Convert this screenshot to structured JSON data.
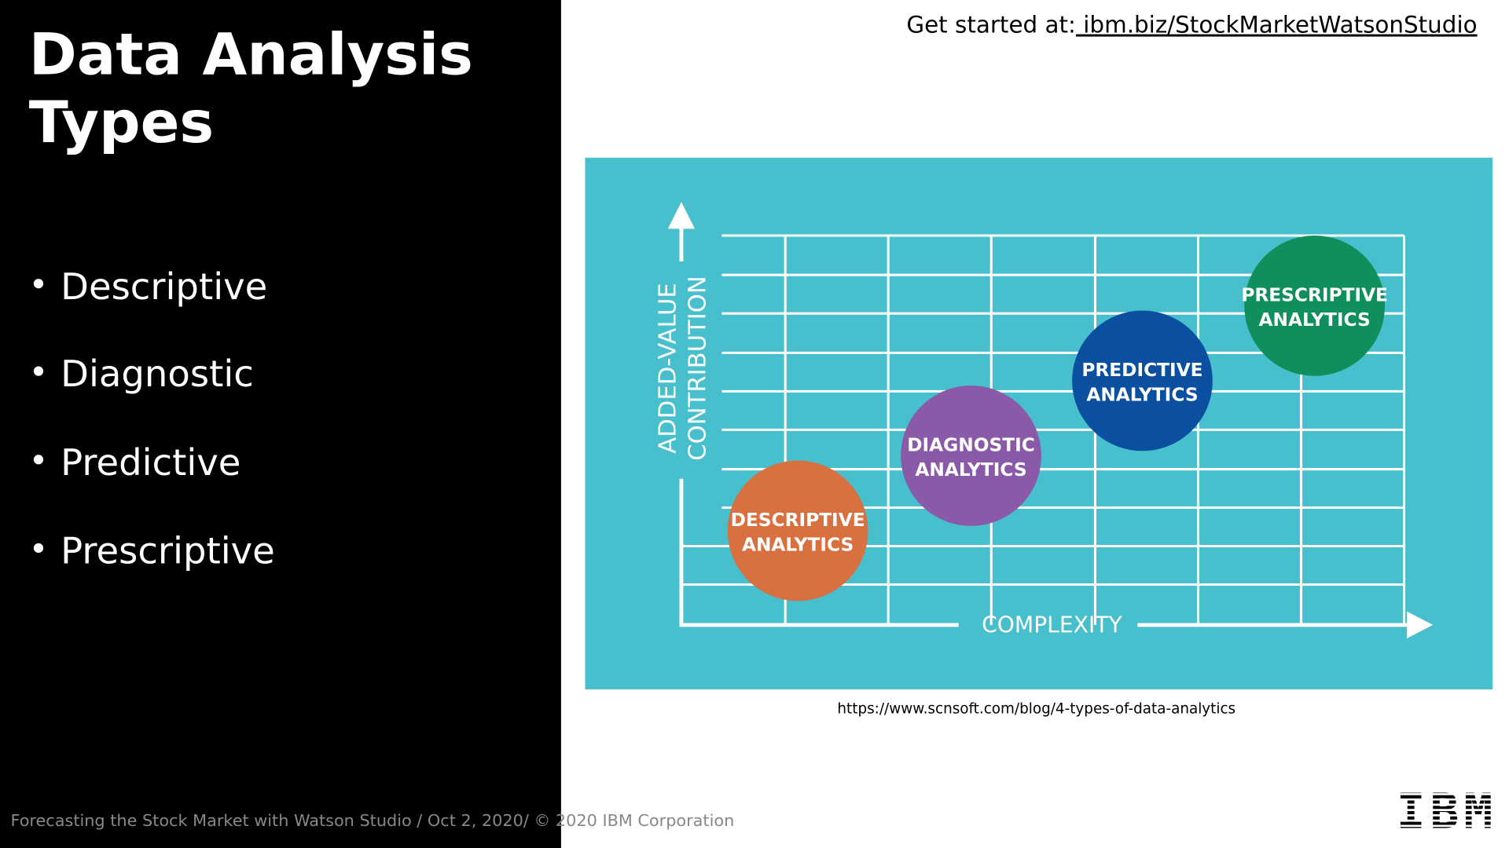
{
  "slide": {
    "title": [
      "Data Analysis",
      "Types"
    ],
    "bullets": [
      "Descriptive",
      "Diagnostic",
      "Predictive",
      "Prescriptive"
    ],
    "link_prefix": "Get started at:",
    "link": " ibm.biz/StockMarketWatsonStudio",
    "diagram": {
      "y_axis_label": [
        "ADDED-VALUE",
        "CONTRIBUTION"
      ],
      "x_axis_label": "COMPLEXITY",
      "nodes": [
        {
          "label": [
            "DESCRIPTIVE",
            "ANALYTICS"
          ],
          "color": "#d9703f"
        },
        {
          "label": [
            "DIAGNOSTIC",
            "ANALYTICS"
          ],
          "color": "#8a5aa8"
        },
        {
          "label": [
            "PREDICTIVE",
            "ANALYTICS"
          ],
          "color": "#0a4fa0"
        },
        {
          "label": [
            "PRESCRIPTIVE",
            "ANALYTICS"
          ],
          "color": "#0f8f5c"
        }
      ]
    },
    "source": "https://www.scnsoft.com/blog/4-types-of-data-analytics",
    "footer": "Forecasting the Stock Market with Watson Studio / Oct 2, 2020/ © 2020 IBM Corporation",
    "logo": "IBM"
  }
}
